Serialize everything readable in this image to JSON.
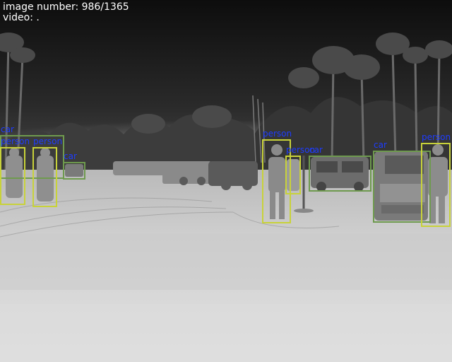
{
  "overlay": {
    "image_number_label": "image number: 986/1365",
    "video_label": "video: ."
  },
  "colors": {
    "person_box": "#c8d23a",
    "car_box": "#6e9a4e",
    "label_text": "#1e3cff"
  },
  "detections": [
    {
      "class": "car",
      "label": "car"
    },
    {
      "class": "person",
      "label": "person"
    },
    {
      "class": "person",
      "label": "person"
    },
    {
      "class": "car",
      "label": "car"
    },
    {
      "class": "person",
      "label": "person"
    },
    {
      "class": "person",
      "label": "person"
    },
    {
      "class": "car",
      "label": "car"
    },
    {
      "class": "car",
      "label": "car"
    },
    {
      "class": "person",
      "label": "person"
    }
  ]
}
